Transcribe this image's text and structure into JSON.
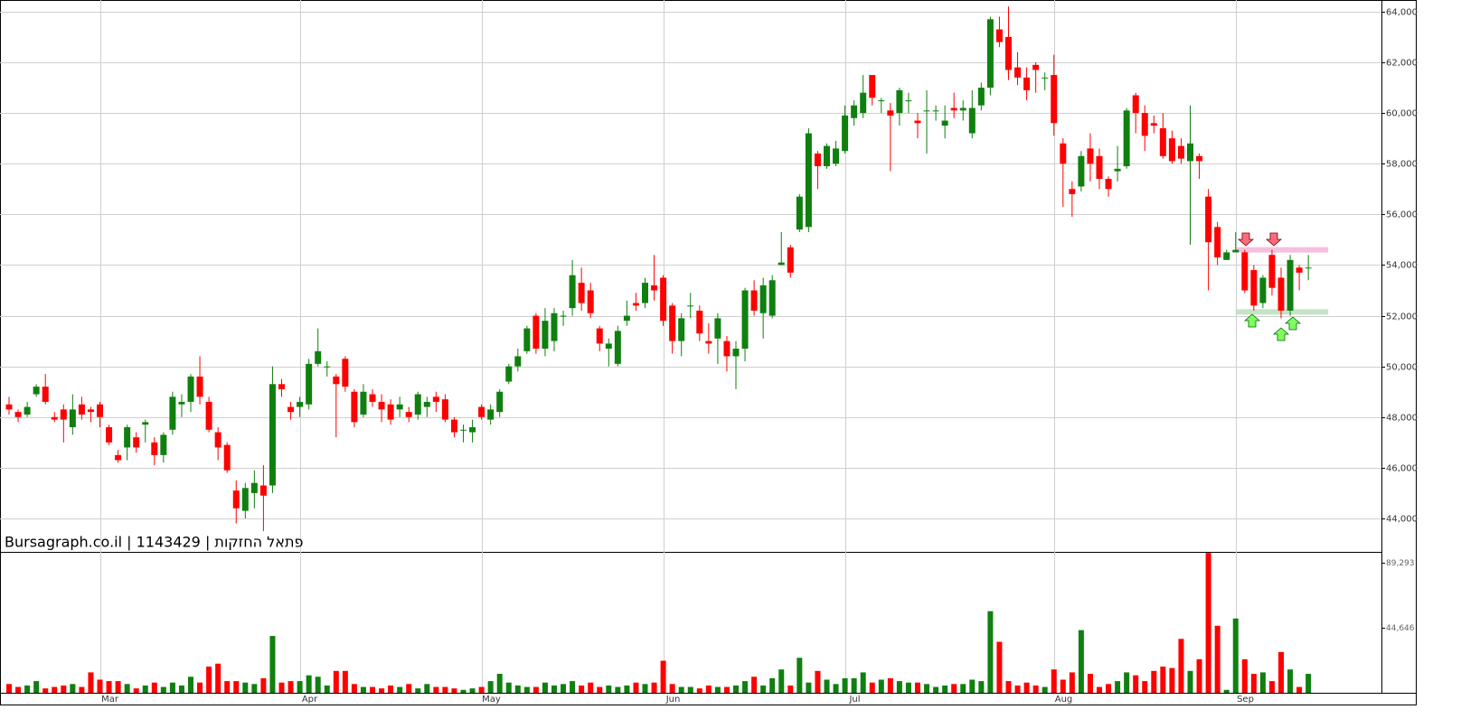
{
  "chart_data": {
    "type": "candlestick",
    "title": "Bursagraph.co.il | 1143429 | פתאל החזקות",
    "categories": [
      null,
      null,
      null,
      null,
      null,
      null,
      null,
      null,
      null,
      null,
      "Mar",
      null,
      null,
      null,
      null,
      null,
      null,
      null,
      null,
      null,
      null,
      null,
      null,
      null,
      null,
      null,
      null,
      null,
      null,
      null,
      null,
      null,
      "Apr",
      null,
      null,
      null,
      null,
      null,
      null,
      null,
      null,
      null,
      null,
      null,
      null,
      null,
      null,
      null,
      null,
      null,
      null,
      null,
      "May",
      null,
      null,
      null,
      null,
      null,
      null,
      null,
      null,
      null,
      null,
      null,
      null,
      null,
      null,
      null,
      null,
      null,
      null,
      null,
      "Jun",
      null,
      null,
      null,
      null,
      null,
      null,
      null,
      null,
      null,
      null,
      null,
      null,
      null,
      null,
      null,
      null,
      null,
      null,
      null,
      "Jul",
      null,
      null,
      null,
      null,
      null,
      null,
      null,
      null,
      null,
      null,
      null,
      null,
      null,
      null,
      null,
      null,
      null,
      null,
      null,
      null,
      null,
      null,
      "Aug",
      null,
      null,
      null,
      null,
      null,
      null,
      null,
      null,
      null,
      null,
      null,
      null,
      null,
      null,
      null,
      null,
      null,
      null,
      null,
      "Sep",
      null,
      null,
      null,
      null,
      null,
      null,
      null,
      null
    ],
    "open": [
      48500,
      48200,
      48100,
      48900,
      49200,
      48000,
      48300,
      47600,
      48500,
      48300,
      48500,
      47600,
      46500,
      46800,
      47200,
      47700,
      47000,
      46500,
      47500,
      48500,
      48600,
      49600,
      48600,
      47400,
      46900,
      45100,
      44300,
      45000,
      45300,
      45300,
      49300,
      48400,
      48400,
      48500,
      50100,
      50000,
      49600,
      50300,
      49000,
      48100,
      48900,
      48600,
      48500,
      48300,
      48200,
      48100,
      48400,
      48800,
      48700,
      47900,
      47500,
      47400,
      48400,
      47900,
      48200,
      49400,
      50000,
      50600,
      52000,
      50700,
      51000,
      52000,
      52300,
      53300,
      53000,
      51500,
      50700,
      50100,
      51800,
      52500,
      52500,
      53200,
      53500,
      52400,
      51000,
      52400,
      52200,
      51000,
      51100,
      51000,
      50400,
      50700,
      53000,
      52100,
      52000,
      54000,
      54700,
      55400,
      55500,
      58400,
      57900,
      58000,
      58500,
      59800,
      60000,
      61500,
      60500,
      60100,
      60000,
      60500,
      59700,
      60100,
      60100,
      59500,
      60200,
      60100,
      59200,
      60300,
      61000,
      63300,
      63000,
      61800,
      61400,
      61900,
      61400,
      61500,
      58800,
      57000,
      57100,
      58600,
      58300,
      57400,
      57700,
      57900,
      60700,
      60000,
      59600,
      59400,
      59000,
      58700,
      58100,
      58300,
      56700,
      55500,
      54200,
      54500,
      54500,
      53800,
      52500,
      54400,
      53500,
      52200,
      53900,
      53900
    ],
    "high": [
      48800,
      48300,
      48600,
      49300,
      49700,
      48200,
      48500,
      48900,
      48800,
      48400,
      48600,
      47700,
      46700,
      47700,
      47400,
      47900,
      47200,
      47400,
      49000,
      48900,
      49700,
      50400,
      48800,
      47600,
      47000,
      45500,
      45400,
      45900,
      46100,
      50000,
      49500,
      48600,
      48800,
      50300,
      51500,
      50200,
      49700,
      50400,
      49100,
      49300,
      49100,
      48900,
      48700,
      48800,
      48400,
      49000,
      48800,
      49000,
      48900,
      48000,
      47700,
      47900,
      48500,
      48500,
      49100,
      50100,
      50700,
      51600,
      52100,
      52300,
      52300,
      52200,
      54200,
      53900,
      53300,
      51600,
      51100,
      51600,
      52600,
      52900,
      53500,
      54400,
      53600,
      52500,
      52100,
      52900,
      52400,
      51700,
      52100,
      51200,
      51000,
      53100,
      53400,
      53500,
      53600,
      55300,
      54800,
      56800,
      59400,
      58500,
      58800,
      58900,
      60300,
      60500,
      61500,
      61500,
      60600,
      60400,
      61000,
      60800,
      60000,
      60900,
      60300,
      60300,
      60800,
      60500,
      60900,
      61200,
      63800,
      63800,
      64200,
      62400,
      61800,
      62000,
      61600,
      62300,
      59000,
      57300,
      58500,
      59200,
      58600,
      57500,
      58700,
      60200,
      60800,
      60300,
      59900,
      60000,
      59300,
      59000,
      60300,
      58400,
      57000,
      55700,
      54600,
      55300,
      54600,
      54000,
      53600,
      54600,
      53900,
      54400,
      54000,
      54400
    ],
    "low": [
      48100,
      47800,
      48000,
      48800,
      48500,
      47800,
      47000,
      47300,
      47900,
      47800,
      47600,
      46900,
      46200,
      46300,
      46600,
      47000,
      46100,
      46200,
      47300,
      48000,
      48200,
      48500,
      47400,
      46300,
      45800,
      43800,
      44000,
      44400,
      43500,
      45000,
      48800,
      47900,
      48000,
      48300,
      50000,
      49600,
      47200,
      49000,
      47600,
      48000,
      48400,
      47800,
      47700,
      48000,
      47800,
      47900,
      48000,
      48200,
      47800,
      47200,
      47000,
      47000,
      47900,
      47700,
      48000,
      49300,
      49800,
      50500,
      50500,
      50400,
      50600,
      51600,
      52000,
      52200,
      51900,
      50600,
      50000,
      50000,
      51600,
      52200,
      52300,
      52600,
      51600,
      50500,
      50400,
      51900,
      51000,
      50500,
      50100,
      49800,
      49100,
      50200,
      52000,
      51100,
      51900,
      54000,
      53500,
      55300,
      55300,
      57000,
      57800,
      57900,
      58400,
      59500,
      59800,
      60300,
      60000,
      57700,
      59500,
      60000,
      59000,
      58400,
      59700,
      59000,
      59800,
      59700,
      59000,
      60100,
      60700,
      62600,
      61300,
      61100,
      60500,
      60800,
      60900,
      59100,
      56300,
      55900,
      56900,
      57300,
      57000,
      56700,
      57300,
      57800,
      59200,
      58500,
      59200,
      58200,
      58000,
      58000,
      54800,
      57400,
      53000,
      54000,
      54200,
      54500,
      52900,
      52200,
      52300,
      52800,
      51900,
      52000,
      53000,
      53400
    ],
    "close": [
      48300,
      48000,
      48400,
      49200,
      48600,
      47900,
      47900,
      48300,
      48100,
      48200,
      48000,
      47000,
      46300,
      47600,
      46800,
      47800,
      46500,
      47300,
      48800,
      48600,
      49600,
      48800,
      47500,
      46800,
      45900,
      44400,
      45200,
      45400,
      44900,
      49300,
      49100,
      48200,
      48600,
      50100,
      50600,
      50000,
      49300,
      49200,
      47800,
      49000,
      48600,
      48300,
      47900,
      48500,
      48000,
      48900,
      48600,
      48600,
      47900,
      47400,
      47500,
      47600,
      48000,
      48300,
      49000,
      50000,
      50400,
      51500,
      50700,
      51800,
      52100,
      52000,
      53600,
      52500,
      52100,
      50900,
      50900,
      51400,
      52000,
      52400,
      53300,
      53000,
      51800,
      51000,
      51900,
      52400,
      51300,
      50900,
      51900,
      50400,
      50700,
      53000,
      52200,
      53200,
      53400,
      54100,
      53700,
      56700,
      59200,
      57900,
      58700,
      58600,
      59900,
      60300,
      60800,
      60600,
      60500,
      59900,
      60900,
      60500,
      59600,
      60100,
      60100,
      59700,
      60100,
      60200,
      60200,
      61000,
      63700,
      62800,
      61700,
      61400,
      60900,
      61700,
      61400,
      59600,
      58000,
      56800,
      58300,
      58000,
      57400,
      57000,
      57800,
      60100,
      60000,
      59100,
      59500,
      58300,
      58100,
      58200,
      58800,
      58100,
      54900,
      54300,
      54500,
      54600,
      53000,
      52400,
      53500,
      53100,
      52200,
      54200,
      53700,
      53900
    ],
    "up_color": "#0f800f",
    "down_color": "#ff0000",
    "ylim": [
      42680,
      64460
    ],
    "yticks": [
      {
        "value": 44000,
        "label": "44,000"
      },
      {
        "value": 46000,
        "label": "46,000"
      },
      {
        "value": 48000,
        "label": "48,000"
      },
      {
        "value": 50000,
        "label": "50,000"
      },
      {
        "value": 52000,
        "label": "52,000"
      },
      {
        "value": 54000,
        "label": "54,000"
      },
      {
        "value": 56000,
        "label": "56,000"
      },
      {
        "value": 58000,
        "label": "58,000"
      },
      {
        "value": 60000,
        "label": "60,000"
      },
      {
        "value": 62000,
        "label": "62,000"
      },
      {
        "value": 64000,
        "label": "64,000"
      }
    ],
    "grid": true,
    "bands": [
      {
        "value": 54600,
        "color": "#f5b8dc"
      },
      {
        "value": 52150,
        "color": "#bfe0bf"
      }
    ],
    "volume": {
      "values": [
        6000,
        4000,
        5000,
        8000,
        3000,
        4000,
        5000,
        6000,
        4000,
        14000,
        9000,
        8000,
        8000,
        6000,
        3000,
        5000,
        7000,
        4000,
        7000,
        5000,
        11000,
        7000,
        18000,
        20000,
        8000,
        8000,
        7000,
        6000,
        10000,
        39000,
        7000,
        8000,
        8000,
        12000,
        11000,
        5000,
        15000,
        15000,
        6000,
        4000,
        4000,
        3000,
        5000,
        4000,
        6000,
        3000,
        6000,
        4000,
        4000,
        3000,
        2000,
        3000,
        4000,
        8000,
        13000,
        7000,
        5000,
        4000,
        4000,
        7000,
        5000,
        6000,
        8000,
        5000,
        7000,
        4000,
        5000,
        4000,
        5000,
        7000,
        6000,
        7000,
        22000,
        6000,
        4000,
        4000,
        3000,
        5000,
        4000,
        4000,
        5000,
        8000,
        11000,
        5000,
        10000,
        16000,
        5000,
        24000,
        7000,
        15000,
        9000,
        6000,
        10000,
        10000,
        14000,
        7000,
        9000,
        10000,
        8000,
        7000,
        7000,
        6000,
        4000,
        5000,
        6000,
        6000,
        9000,
        8000,
        56000,
        35000,
        8000,
        5000,
        7000,
        5000,
        4000,
        16000,
        9000,
        14000,
        43000,
        13000,
        4000,
        6000,
        8000,
        14000,
        12000,
        8000,
        15000,
        18000,
        17000,
        37000,
        15000,
        23000,
        96000,
        46000,
        2000,
        51000,
        23000,
        13000,
        14000,
        8000,
        28000,
        16000,
        4000,
        13000
      ],
      "ylim": [
        0,
        96100
      ],
      "yticks": [
        {
          "value": 44646,
          "label": "44,646"
        },
        {
          "value": 89293,
          "label": "89,293"
        }
      ]
    }
  }
}
